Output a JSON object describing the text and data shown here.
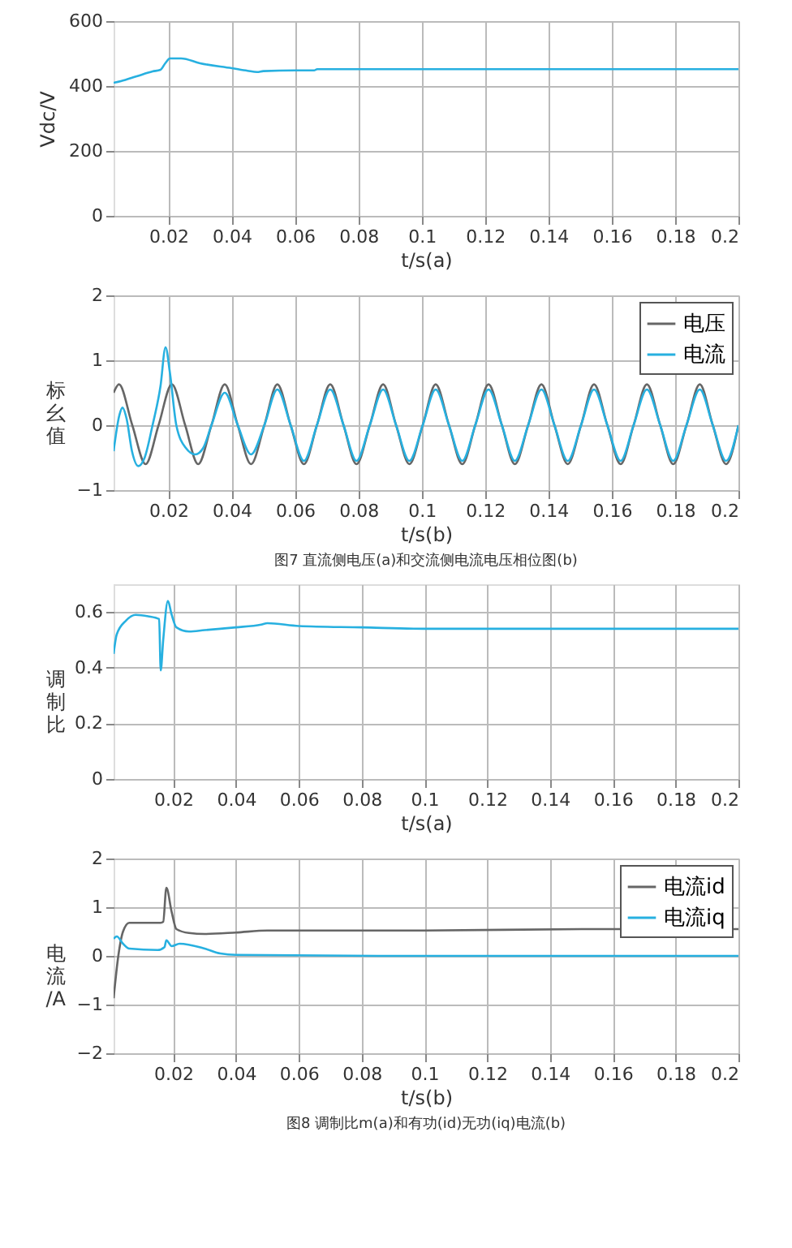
{
  "chart_data": [
    {
      "type": "line",
      "xlabel": "t/s(a)",
      "ylabel": "Vdc/V",
      "xlim": [
        0.0027,
        0.2
      ],
      "xticks": [
        0.02,
        0.04,
        0.06,
        0.08,
        0.1,
        0.12,
        0.14,
        0.16,
        0.18,
        0.2
      ],
      "ylim": [
        0,
        600
      ],
      "yticks": [
        0,
        200,
        400,
        600
      ],
      "grid": true,
      "legend": false,
      "line_style": "solid",
      "series": [
        {
          "color": "#27b0e0",
          "x": [
            0.0027,
            0.005,
            0.01,
            0.015,
            0.0175,
            0.019,
            0.0205,
            0.024,
            0.03,
            0.04,
            0.045,
            0.048,
            0.05,
            0.06,
            0.066,
            0.067,
            0.1,
            0.15,
            0.2
          ],
          "values": [
            410,
            415,
            430,
            445,
            450,
            470,
            485,
            485,
            470,
            455,
            447,
            443,
            446,
            448,
            448,
            452,
            452,
            452,
            452
          ]
        }
      ]
    },
    {
      "type": "line",
      "xlabel": "t/s(b)",
      "ylabel": "标幺值",
      "xlim": [
        0.0027,
        0.2
      ],
      "xticks": [
        0.02,
        0.04,
        0.06,
        0.08,
        0.1,
        0.12,
        0.14,
        0.16,
        0.18,
        0.2
      ],
      "ylim": [
        -1,
        2
      ],
      "yticks": [
        -1,
        0,
        1,
        2
      ],
      "grid": true,
      "legend": "top right",
      "line_style": "solid",
      "annotations": [
        "图7 直流侧电压(a)和交流侧电流电压相位图(b)"
      ],
      "series": [
        {
          "name": "电压",
          "color": "#666666",
          "x": [
            0.0027,
            0.0044,
            0.0086,
            0.0128,
            0.0169,
            0.0211,
            0.0253,
            0.0294,
            0.0336,
            0.0378,
            0.0419,
            0.0461,
            0.0503,
            0.0544,
            0.0586,
            0.0628,
            0.0669,
            0.0711,
            0.0753,
            0.0794,
            0.0836,
            0.0878,
            0.0919,
            0.0961,
            0.1003,
            0.1044,
            0.1086,
            0.1128,
            0.1169,
            0.1211,
            0.1253,
            0.1294,
            0.1336,
            0.1378,
            0.1419,
            0.1461,
            0.1503,
            0.1544,
            0.1586,
            0.1628,
            0.1669,
            0.1711,
            0.1753,
            0.1794,
            0.1836,
            0.1878,
            0.1919,
            0.1961,
            0.2
          ],
          "values": [
            0.5,
            0.63,
            0,
            -0.6,
            0,
            0.63,
            0,
            -0.6,
            0,
            0.63,
            0,
            -0.6,
            0,
            0.63,
            0,
            -0.6,
            0,
            0.63,
            0,
            -0.6,
            0,
            0.63,
            0,
            -0.6,
            0,
            0.63,
            0,
            -0.6,
            0,
            0.63,
            0,
            -0.6,
            0,
            0.63,
            0,
            -0.6,
            0,
            0.63,
            0,
            -0.6,
            0,
            0.63,
            0,
            -0.6,
            0,
            0.63,
            0,
            -0.6,
            0
          ]
        },
        {
          "name": "电流",
          "color": "#27b0e0",
          "x": [
            0.0027,
            0.0045,
            0.0055,
            0.0068,
            0.0085,
            0.0105,
            0.0125,
            0.015,
            0.0175,
            0.0191,
            0.0205,
            0.0225,
            0.0255,
            0.0285,
            0.031,
            0.0336,
            0.0378,
            0.0419,
            0.0461,
            0.0503,
            0.0544,
            0.0586,
            0.0628,
            0.0669,
            0.0711,
            0.0753,
            0.0794,
            0.0836,
            0.0878,
            0.0919,
            0.0961,
            0.1003,
            0.1044,
            0.1086,
            0.1128,
            0.1169,
            0.1211,
            0.1253,
            0.1294,
            0.1336,
            0.1378,
            0.1419,
            0.1461,
            0.1503,
            0.1544,
            0.1586,
            0.1628,
            0.1669,
            0.1711,
            0.1753,
            0.1794,
            0.1836,
            0.1878,
            0.1919,
            0.1961,
            0.2
          ],
          "values": [
            -0.4,
            0.15,
            0.27,
            0.1,
            -0.4,
            -0.63,
            -0.5,
            0,
            0.6,
            1.2,
            0.8,
            0,
            -0.35,
            -0.45,
            -0.35,
            0,
            0.5,
            0,
            -0.45,
            0,
            0.55,
            0,
            -0.55,
            0,
            0.55,
            0,
            -0.55,
            0,
            0.55,
            0,
            -0.55,
            0,
            0.55,
            0,
            -0.55,
            0,
            0.55,
            0,
            -0.55,
            0,
            0.55,
            0,
            -0.55,
            0,
            0.55,
            0,
            -0.55,
            0,
            0.55,
            0,
            -0.55,
            0,
            0.55,
            0,
            -0.55,
            0
          ]
        }
      ]
    },
    {
      "type": "line",
      "xlabel": "t/s(a)",
      "ylabel": "调制比",
      "xlim": [
        0.001,
        0.2
      ],
      "xticks": [
        0.02,
        0.04,
        0.06,
        0.08,
        0.1,
        0.12,
        0.14,
        0.16,
        0.18,
        0.2
      ],
      "ylim": [
        0,
        0.7
      ],
      "yticks": [
        0,
        0.2,
        0.4,
        0.6
      ],
      "grid": true,
      "legend": false,
      "line_style": "solid",
      "series": [
        {
          "color": "#27b0e0",
          "x": [
            0.001,
            0.002,
            0.005,
            0.008,
            0.012,
            0.0155,
            0.016,
            0.0168,
            0.0183,
            0.0195,
            0.021,
            0.025,
            0.03,
            0.035,
            0.04,
            0.048,
            0.05,
            0.06,
            0.08,
            0.1,
            0.15,
            0.2
          ],
          "values": [
            0.45,
            0.52,
            0.57,
            0.59,
            0.585,
            0.575,
            0.39,
            0.5,
            0.64,
            0.59,
            0.545,
            0.53,
            0.535,
            0.54,
            0.545,
            0.555,
            0.56,
            0.55,
            0.545,
            0.54,
            0.54,
            0.54
          ]
        }
      ]
    },
    {
      "type": "line",
      "xlabel": "t/s(b)",
      "ylabel": "电流/A",
      "xlim": [
        0.001,
        0.2
      ],
      "xticks": [
        0.02,
        0.04,
        0.06,
        0.08,
        0.1,
        0.12,
        0.14,
        0.16,
        0.18,
        0.2
      ],
      "ylim": [
        -2,
        2
      ],
      "yticks": [
        -2,
        -1,
        0,
        1,
        2
      ],
      "grid": true,
      "legend": "top right",
      "line_style": "solid",
      "annotations": [
        "图8 调制比m(a)和有功(id)无功(iq)电流(b)"
      ],
      "series": [
        {
          "name": "电流id",
          "color": "#666666",
          "x": [
            0.001,
            0.0025,
            0.004,
            0.006,
            0.01,
            0.016,
            0.0168,
            0.0178,
            0.0195,
            0.021,
            0.025,
            0.03,
            0.04,
            0.05,
            0.1,
            0.15,
            0.2
          ],
          "values": [
            -0.87,
            0,
            0.5,
            0.68,
            0.68,
            0.68,
            0.7,
            1.4,
            0.9,
            0.55,
            0.47,
            0.45,
            0.48,
            0.52,
            0.52,
            0.55,
            0.55
          ]
        },
        {
          "name": "电流iq",
          "color": "#27b0e0",
          "x": [
            0.001,
            0.002,
            0.004,
            0.006,
            0.015,
            0.0172,
            0.0178,
            0.0195,
            0.022,
            0.03,
            0.035,
            0.04,
            0.1,
            0.2
          ],
          "values": [
            0.35,
            0.4,
            0.25,
            0.15,
            0.12,
            0.18,
            0.32,
            0.2,
            0.25,
            0.15,
            0.05,
            0.02,
            0,
            0
          ]
        }
      ]
    }
  ]
}
